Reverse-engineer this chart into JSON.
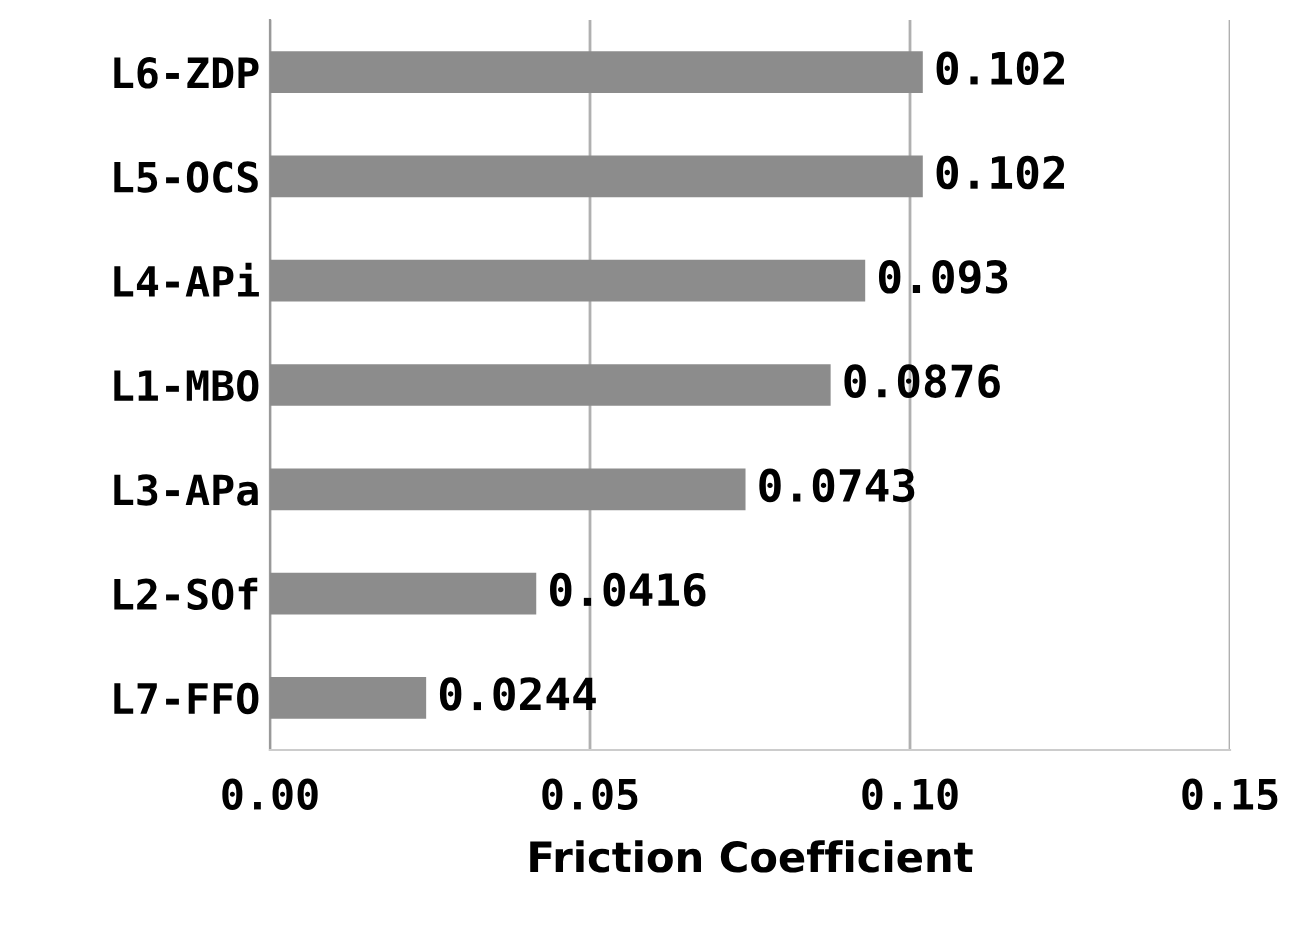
{
  "chart_data": {
    "type": "bar",
    "orientation": "horizontal",
    "xlabel": "Friction Coefficient",
    "categories": [
      "L6-ZDP",
      "L5-OCS",
      "L4-APi",
      "L1-MBO",
      "L3-APa",
      "L2-SOf",
      "L7-FFO"
    ],
    "values": [
      0.102,
      0.102,
      0.093,
      0.0876,
      0.0743,
      0.0416,
      0.0244
    ],
    "color": "#8c8c8c",
    "data_labels": true,
    "xlim": [
      0,
      0.15
    ],
    "xticks": [
      {
        "value": 0,
        "label": "0.00"
      },
      {
        "value": 0.05,
        "label": "0.05"
      },
      {
        "value": 0.1,
        "label": "0.10"
      },
      {
        "value": 0.15,
        "label": "0.15"
      }
    ],
    "grid": "x"
  }
}
